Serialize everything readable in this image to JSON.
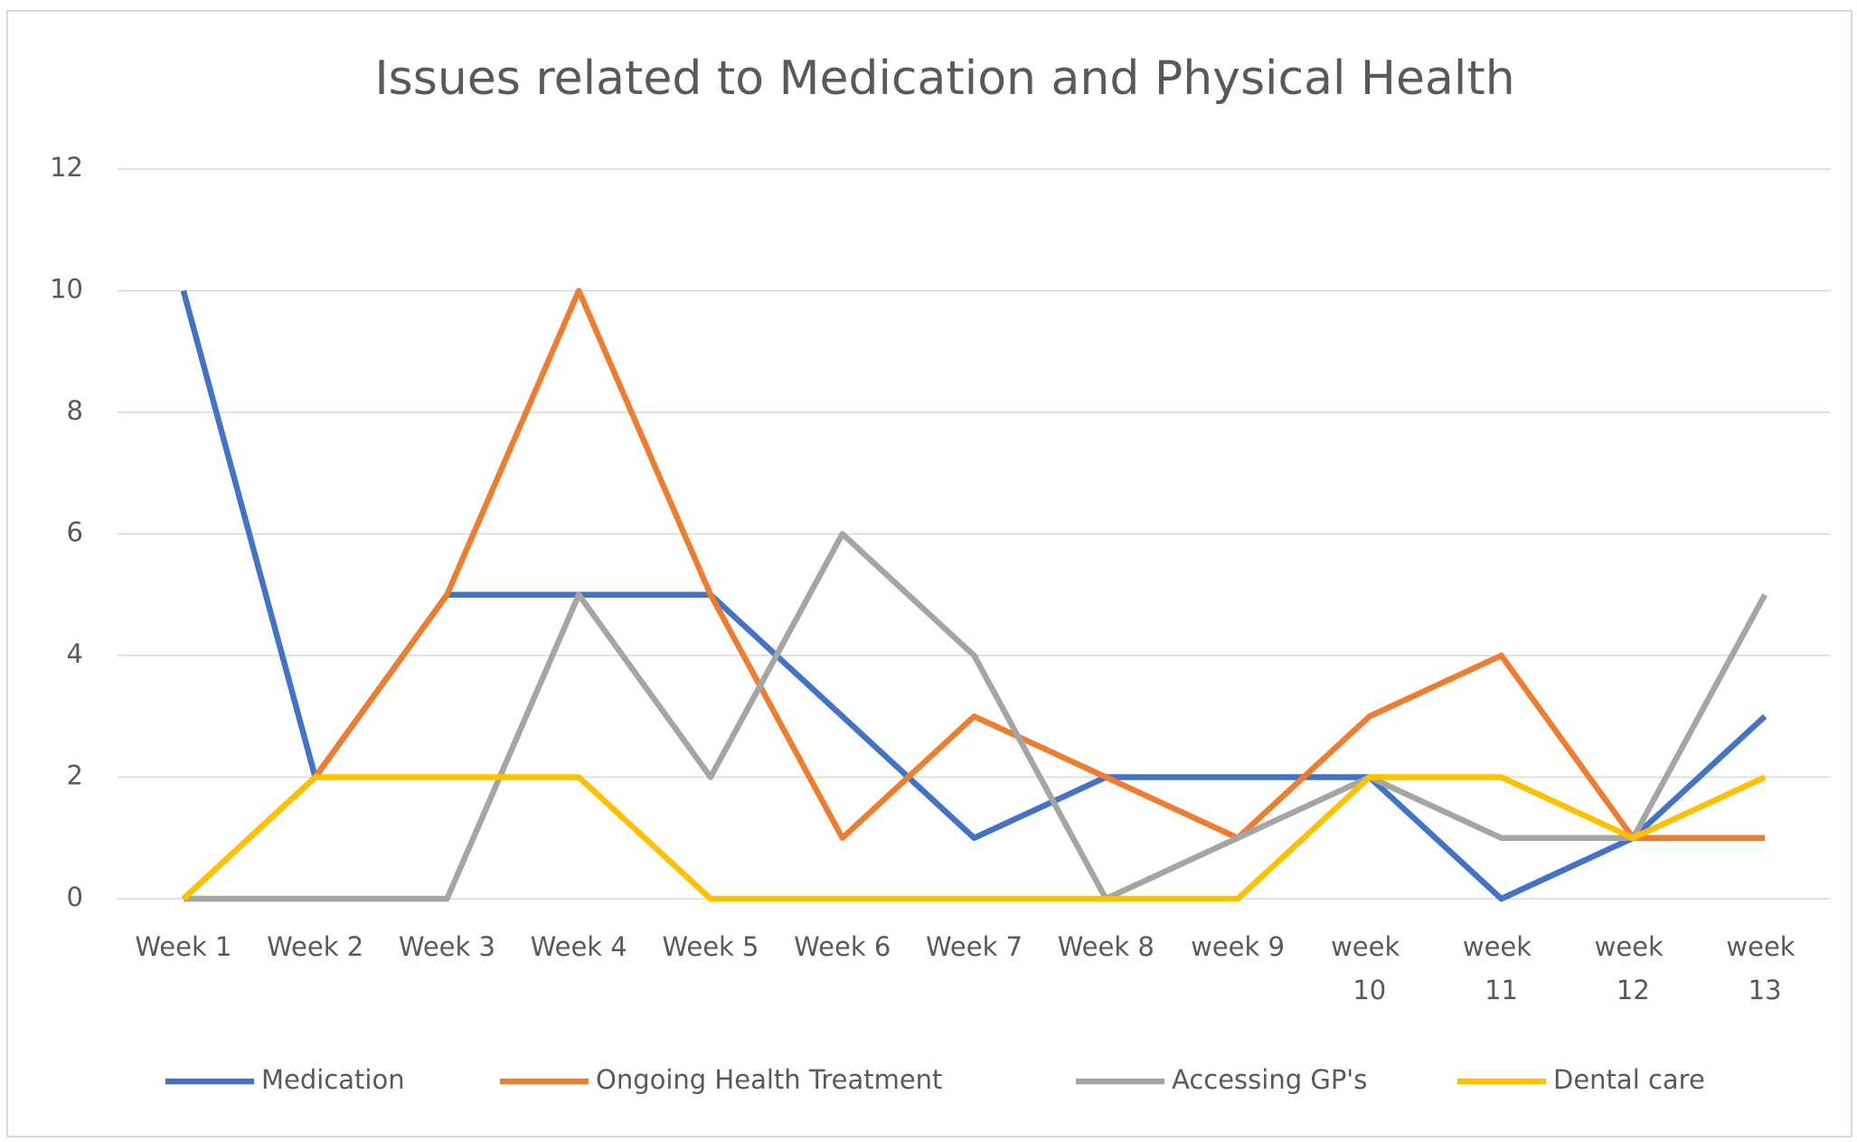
{
  "chart_data": {
    "type": "line",
    "title": "Issues related to Medication and Physical Health",
    "categories": [
      "Week 1",
      "Week 2",
      "Week 3",
      "Week 4",
      "Week 5",
      "Week 6",
      "Week 7",
      "Week 8",
      "week 9",
      "week 10",
      "week 11",
      "week 12",
      "week 13"
    ],
    "series": [
      {
        "name": "Medication",
        "color": "#4472c4",
        "values": [
          10,
          2,
          5,
          5,
          5,
          3,
          1,
          2,
          2,
          2,
          0,
          1,
          3
        ]
      },
      {
        "name": "Ongoing Health Treatment",
        "color": "#ed7d31",
        "values": [
          0,
          2,
          5,
          10,
          5,
          1,
          3,
          2,
          1,
          3,
          4,
          1,
          1
        ]
      },
      {
        "name": "Accessing GP's",
        "color": "#a5a5a5",
        "values": [
          0,
          0,
          0,
          5,
          2,
          6,
          4,
          0,
          1,
          2,
          1,
          1,
          5
        ]
      },
      {
        "name": "Dental care",
        "color": "#ffc000",
        "values": [
          0,
          2,
          2,
          2,
          0,
          0,
          0,
          0,
          0,
          2,
          2,
          1,
          2
        ]
      }
    ],
    "ylim": [
      0,
      12
    ],
    "yticks": [
      0,
      2,
      4,
      6,
      8,
      10,
      12
    ],
    "grid": true,
    "legend": "bottom"
  }
}
